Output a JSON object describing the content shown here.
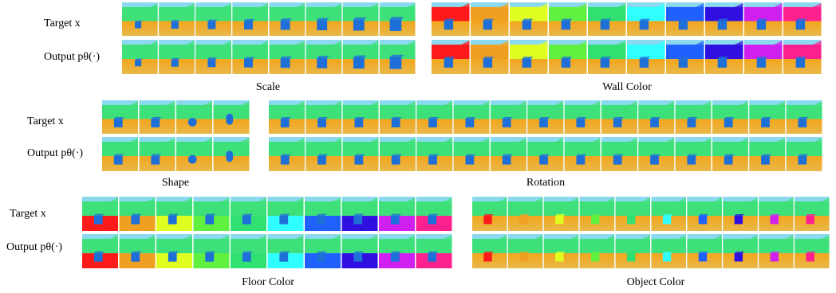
{
  "bands": [
    {
      "row_labels": [
        "Target x",
        "Output pθ(·)"
      ],
      "panels": [
        {
          "caption": "Scale"
        },
        {
          "caption": "Wall Color"
        }
      ]
    },
    {
      "row_labels": [
        "Target x",
        "Output pθ(·)"
      ],
      "panels": [
        {
          "caption": "Shape"
        },
        {
          "caption": "Rotation"
        }
      ]
    },
    {
      "row_labels": [
        "Target x",
        "Output pθ(·)"
      ],
      "panels": [
        {
          "caption": "Floor Color"
        },
        {
          "caption": "Object Color"
        }
      ]
    }
  ]
}
